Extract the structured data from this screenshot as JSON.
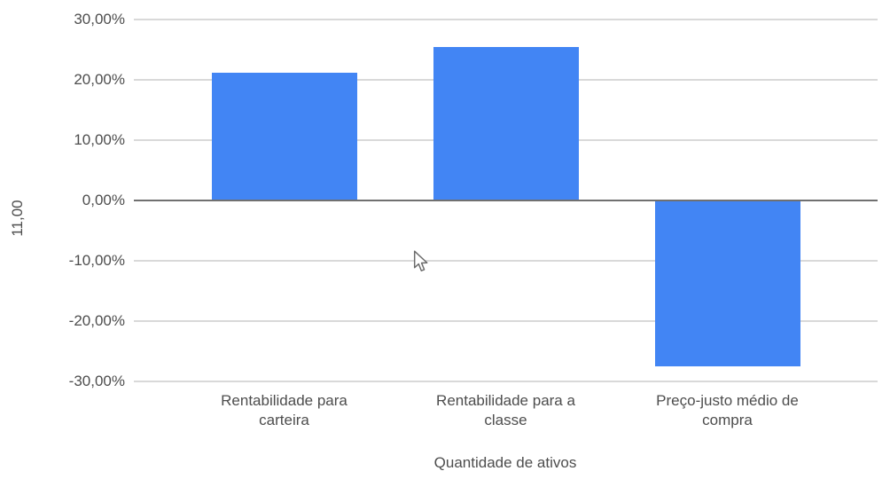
{
  "chart_data": {
    "type": "bar",
    "categories": [
      "Rentabilidade para carteira",
      "Rentabilidade para a classe",
      "Preço-justo médio de compra"
    ],
    "category_lines": [
      [
        "Rentabilidade para",
        "carteira"
      ],
      [
        "Rentabilidade para a",
        "classe"
      ],
      [
        "Preço-justo médio de",
        "compra"
      ]
    ],
    "values": [
      21.2,
      25.4,
      -27.5
    ],
    "title": "",
    "xlabel": "Quantidade de ativos",
    "ylabel": "11,00",
    "ylim": [
      -30,
      30
    ],
    "yticks": [
      30,
      20,
      10,
      0,
      -10,
      -20,
      -30
    ],
    "ytick_labels": [
      "30,00%",
      "20,00%",
      "10,00%",
      "0,00%",
      "-10,00%",
      "-20,00%",
      "-30,00%"
    ],
    "grid": true,
    "legend_position": "none",
    "bar_color": "#4285f4"
  },
  "colors": {
    "bar": "#4285f4",
    "gridline": "#d9d9d9",
    "zero_line": "#707070",
    "text": "#4d4d4d",
    "background": "#ffffff"
  },
  "cursor": {
    "visible": true
  }
}
